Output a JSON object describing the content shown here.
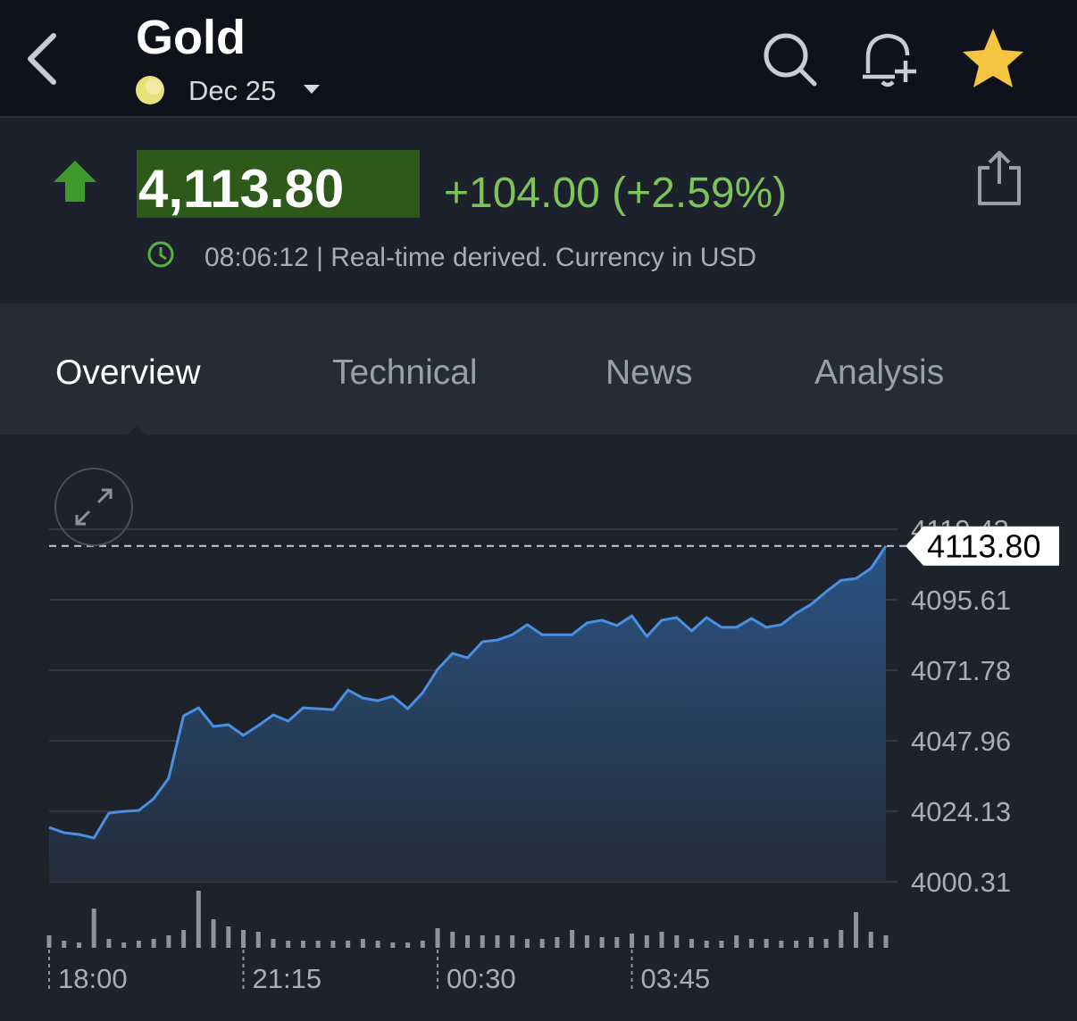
{
  "header": {
    "title": "Gold",
    "contract": "Dec 25"
  },
  "quote": {
    "price": "4,113.80",
    "change": "+104.00 (+2.59%)",
    "status": "08:06:12 | Real-time derived. Currency in USD"
  },
  "tabs": [
    "Overview",
    "Technical",
    "News",
    "Analysis"
  ],
  "chart_data": {
    "type": "area",
    "color": "#4a90e2",
    "categories": [
      "18:00",
      null,
      null,
      null,
      null,
      null,
      null,
      null,
      null,
      null,
      null,
      null,
      null,
      "21:15",
      null,
      null,
      null,
      null,
      null,
      null,
      null,
      null,
      null,
      null,
      null,
      null,
      "00:30",
      null,
      null,
      null,
      null,
      null,
      null,
      null,
      null,
      null,
      null,
      null,
      null,
      "03:45",
      null,
      null,
      null,
      null,
      null,
      null,
      null,
      null,
      null,
      null,
      null,
      null,
      null,
      null,
      null,
      null,
      null
    ],
    "values": [
      4018.7,
      4016.9,
      4016.3,
      4015.1,
      4023.5,
      4024.1,
      4024.4,
      4028.4,
      4035.3,
      4056.4,
      4059.1,
      4052.8,
      4053.4,
      4049.8,
      4053.1,
      4056.7,
      4054.6,
      4059.1,
      4058.8,
      4058.5,
      4065.1,
      4062.4,
      4061.5,
      4063.0,
      4058.8,
      4064.2,
      4072.1,
      4077.5,
      4076.0,
      4081.4,
      4082.0,
      4083.8,
      4087.2,
      4083.8,
      4083.8,
      4083.8,
      4087.8,
      4088.7,
      4086.9,
      4090.2,
      4083.2,
      4088.7,
      4089.6,
      4085.1,
      4089.6,
      4086.3,
      4086.3,
      4089.3,
      4086.3,
      4087.2,
      4091.1,
      4094.1,
      4098.3,
      4102.2,
      4102.8,
      4106.2,
      4113.8
    ],
    "volume": [
      14,
      8,
      6,
      44,
      10,
      6,
      8,
      10,
      14,
      20,
      64,
      32,
      24,
      20,
      18,
      10,
      8,
      8,
      8,
      8,
      8,
      10,
      8,
      6,
      6,
      8,
      22,
      18,
      14,
      14,
      14,
      14,
      10,
      10,
      12,
      20,
      14,
      12,
      12,
      16,
      14,
      18,
      14,
      10,
      8,
      8,
      14,
      10,
      10,
      8,
      8,
      12,
      10,
      20,
      40,
      18,
      14
    ],
    "ylim": [
      4000.31,
      4129.4
    ],
    "yticks": [
      4000.31,
      4024.13,
      4047.96,
      4071.78,
      4095.61,
      4119.43
    ],
    "last_price": {
      "value": 4113.8,
      "label": "4113.80"
    },
    "grid": true
  }
}
